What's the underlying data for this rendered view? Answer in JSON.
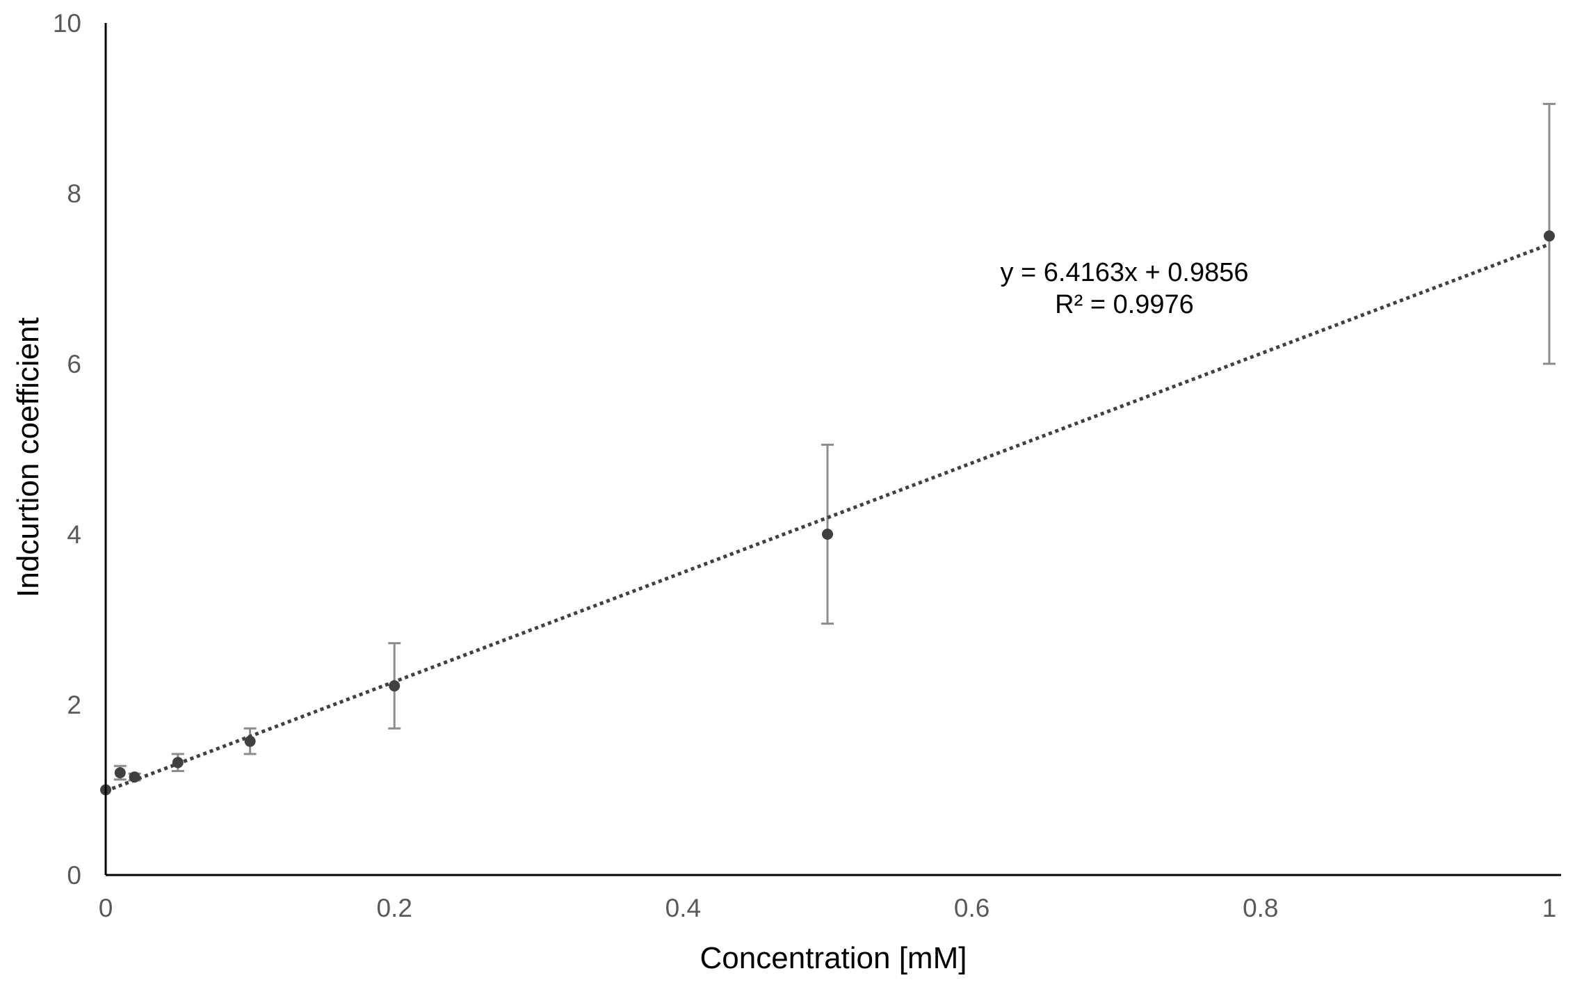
{
  "chart_data": {
    "type": "scatter",
    "title": "",
    "xlabel": "Concentration [mM]",
    "ylabel": "Indcurtion coefficient",
    "xlim": [
      0,
      1
    ],
    "ylim": [
      0,
      10
    ],
    "x_ticks": [
      "0",
      "0.2",
      "0.4",
      "0.6",
      "0.8",
      "1"
    ],
    "y_ticks": [
      "0",
      "2",
      "4",
      "6",
      "8",
      "10"
    ],
    "grid": false,
    "legend": "none",
    "series": [
      {
        "x": [
          0,
          0.01,
          0.02,
          0.05,
          0.1,
          0.2,
          0.5,
          1
        ],
        "y": [
          1.0,
          1.2,
          1.15,
          1.32,
          1.57,
          2.22,
          4.0,
          7.5
        ],
        "error_minus": [
          0,
          0.08,
          0.04,
          0.1,
          0.15,
          0.5,
          1.05,
          1.5
        ],
        "error_plus": [
          0,
          0.08,
          0.04,
          0.1,
          0.15,
          0.5,
          1.05,
          1.55
        ]
      }
    ],
    "trendline": {
      "type": "linear",
      "style": "dotted",
      "slope": 6.4163,
      "intercept": 0.9856,
      "equation": "y = 6.4163x + 0.9856",
      "r_squared": "R² = 0.9976"
    },
    "colors": {
      "marker": "#404040",
      "error_bar": "#8c8c8c",
      "trendline": "#404040",
      "axis": "#000000",
      "tick_label": "#595959"
    }
  }
}
